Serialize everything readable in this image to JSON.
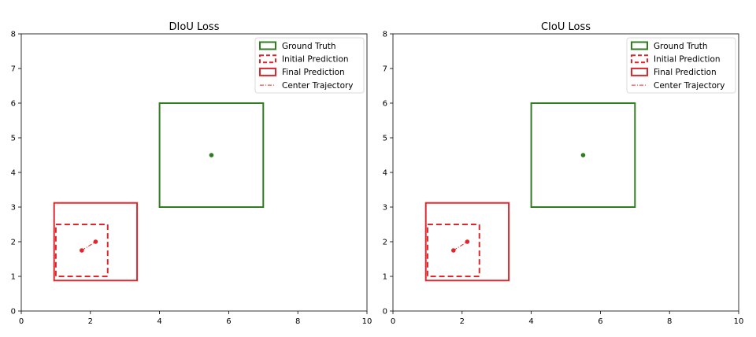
{
  "colors": {
    "ground_truth": "#2e7d1f",
    "prediction": "#e0262b",
    "axis": "#000000",
    "background": "#ffffff"
  },
  "legend_labels": {
    "ground_truth": "Ground Truth",
    "initial": "Initial Prediction",
    "final": "Final Prediction",
    "trajectory": "Center Trajectory"
  },
  "chart_data": [
    {
      "type": "scatter",
      "title": "DIoU Loss",
      "xlabel": "",
      "ylabel": "",
      "xlim": [
        0,
        10
      ],
      "ylim": [
        0,
        8
      ],
      "xticks": [
        0,
        2,
        4,
        6,
        8,
        10
      ],
      "yticks": [
        0,
        1,
        2,
        3,
        4,
        5,
        6,
        7,
        8
      ],
      "grid": false,
      "legend_location": "top-right",
      "ground_truth_box": {
        "x1": 4,
        "y1": 3,
        "x2": 7,
        "y2": 6
      },
      "ground_truth_center": [
        5.5,
        4.5
      ],
      "initial_box": {
        "x1": 1,
        "y1": 1,
        "x2": 2.5,
        "y2": 2.5
      },
      "final_box": {
        "x1": 0.95,
        "y1": 0.88,
        "x2": 3.35,
        "y2": 3.12
      },
      "trajectory": [
        [
          1.75,
          1.75
        ],
        [
          2.15,
          2.0
        ]
      ]
    },
    {
      "type": "scatter",
      "title": "CIoU Loss",
      "xlabel": "",
      "ylabel": "",
      "xlim": [
        0,
        10
      ],
      "ylim": [
        0,
        8
      ],
      "xticks": [
        0,
        2,
        4,
        6,
        8,
        10
      ],
      "yticks": [
        0,
        1,
        2,
        3,
        4,
        5,
        6,
        7,
        8
      ],
      "grid": false,
      "legend_location": "top-right",
      "ground_truth_box": {
        "x1": 4,
        "y1": 3,
        "x2": 7,
        "y2": 6
      },
      "ground_truth_center": [
        5.5,
        4.5
      ],
      "initial_box": {
        "x1": 1,
        "y1": 1,
        "x2": 2.5,
        "y2": 2.5
      },
      "final_box": {
        "x1": 0.95,
        "y1": 0.88,
        "x2": 3.35,
        "y2": 3.12
      },
      "trajectory": [
        [
          1.75,
          1.75
        ],
        [
          2.15,
          2.0
        ]
      ]
    }
  ]
}
